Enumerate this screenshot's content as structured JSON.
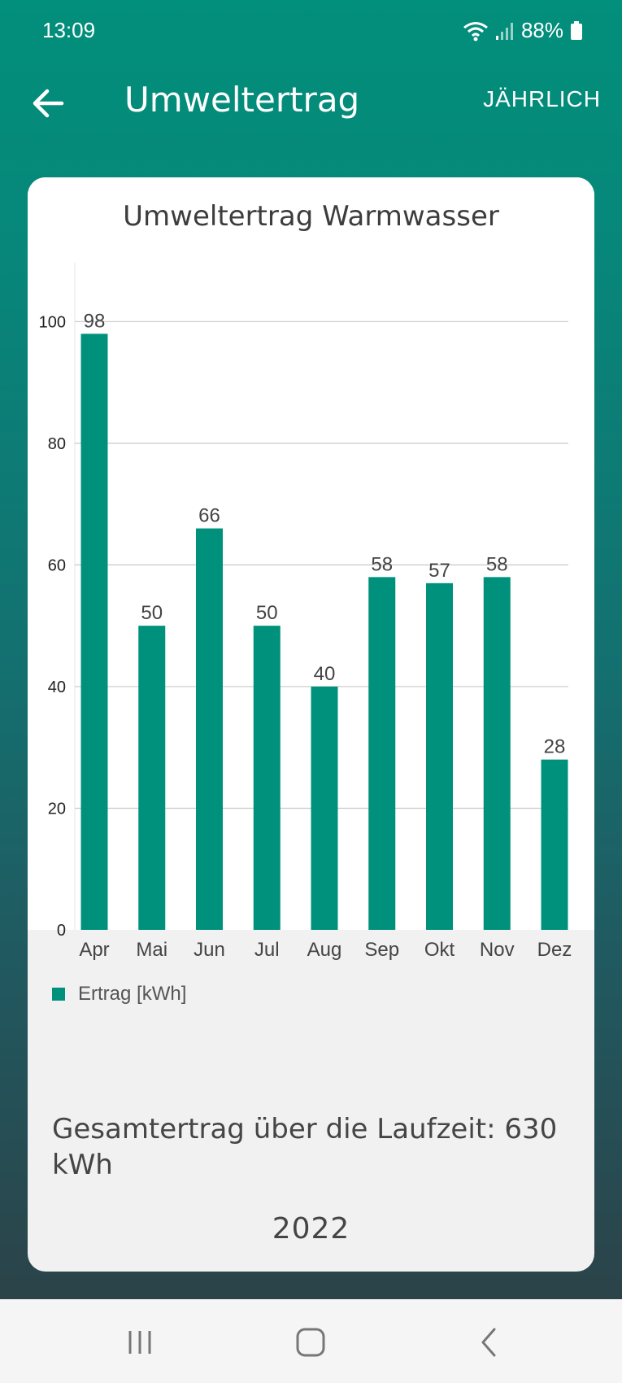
{
  "status": {
    "time": "13:09",
    "battery": "88%"
  },
  "app_bar": {
    "title": "Umweltertrag",
    "period_button": "JÄHRLICH"
  },
  "card": {
    "title": "Umweltertrag Warmwasser",
    "total": "Gesamtertrag über die Laufzeit: 630 kWh",
    "year": "2022"
  },
  "chart_data": {
    "type": "bar",
    "title": "Umweltertrag Warmwasser",
    "categories": [
      "Apr",
      "Mai",
      "Jun",
      "Jul",
      "Aug",
      "Sep",
      "Okt",
      "Nov",
      "Dez"
    ],
    "series": [
      {
        "name": "Ertrag [kWh]",
        "values": [
          98,
          50,
          66,
          50,
          40,
          58,
          57,
          58,
          28
        ],
        "color": "#00917c"
      }
    ],
    "yticks": [
      0,
      20,
      40,
      60,
      80,
      100
    ],
    "ylim": [
      0,
      107
    ],
    "grid": true,
    "data_labels": true,
    "legend_position": "bottom-left"
  },
  "colors": {
    "accent": "#00917c",
    "header": "#028f7b"
  },
  "icons": {
    "back": "arrow-left-icon",
    "wifi": "wifi-icon",
    "signal": "signal-icon",
    "battery": "battery-icon"
  }
}
